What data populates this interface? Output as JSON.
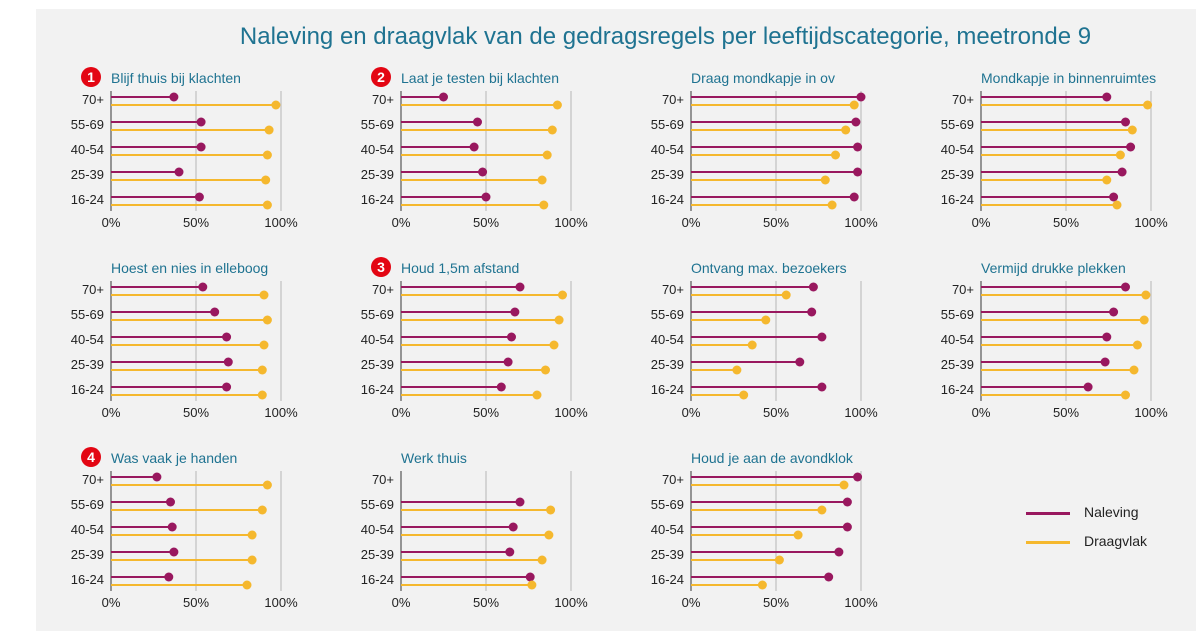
{
  "chart_data": {
    "type": "lollipop",
    "title": "Naleving en draagvlak van de gedragsregels per leeftijdscategorie, meetronde 9",
    "categories": [
      "70+",
      "55-69",
      "40-54",
      "25-39",
      "16-24"
    ],
    "xticks": [
      "0%",
      "50%",
      "100%"
    ],
    "xlim": [
      0,
      100
    ],
    "colors": {
      "naleving": "#99185f",
      "draagvlak": "#f5b82e",
      "title": "#1f7391",
      "badge": "#e30613"
    },
    "legend": [
      {
        "key": "naleving",
        "label": "Naleving"
      },
      {
        "key": "draagvlak",
        "label": "Draagvlak"
      }
    ],
    "panels": [
      {
        "title": "Blijf thuis bij klachten",
        "badge": "1",
        "naleving": [
          37,
          53,
          53,
          40,
          52
        ],
        "draagvlak": [
          97,
          93,
          92,
          91,
          92
        ]
      },
      {
        "title": "Laat je testen bij klachten",
        "badge": "2",
        "naleving": [
          25,
          45,
          43,
          48,
          50
        ],
        "draagvlak": [
          92,
          89,
          86,
          83,
          84
        ]
      },
      {
        "title": "Draag mondkapje in ov",
        "badge": "",
        "naleving": [
          100,
          97,
          98,
          98,
          96
        ],
        "draagvlak": [
          96,
          91,
          85,
          79,
          83
        ]
      },
      {
        "title": "Mondkapje in binnenruimtes",
        "badge": "",
        "naleving": [
          74,
          85,
          88,
          83,
          78
        ],
        "draagvlak": [
          98,
          89,
          82,
          74,
          80
        ]
      },
      {
        "title": "Hoest en nies in elleboog",
        "badge": "",
        "naleving": [
          54,
          61,
          68,
          69,
          68
        ],
        "draagvlak": [
          90,
          92,
          90,
          89,
          89
        ]
      },
      {
        "title": "Houd 1,5m afstand",
        "badge": "3",
        "naleving": [
          70,
          67,
          65,
          63,
          59
        ],
        "draagvlak": [
          95,
          93,
          90,
          85,
          80
        ]
      },
      {
        "title": "Ontvang max. bezoekers",
        "badge": "",
        "naleving": [
          72,
          71,
          77,
          64,
          77
        ],
        "draagvlak": [
          56,
          44,
          36,
          27,
          31
        ]
      },
      {
        "title": "Vermijd drukke plekken",
        "badge": "",
        "naleving": [
          85,
          78,
          74,
          73,
          63
        ],
        "draagvlak": [
          97,
          96,
          92,
          90,
          85
        ]
      },
      {
        "title": "Was vaak je handen",
        "badge": "4",
        "naleving": [
          27,
          35,
          36,
          37,
          34
        ],
        "draagvlak": [
          92,
          89,
          83,
          83,
          80
        ]
      },
      {
        "title": "Werk thuis",
        "badge": "",
        "naleving": [
          null,
          70,
          66,
          64,
          76
        ],
        "draagvlak": [
          null,
          88,
          87,
          83,
          77
        ]
      },
      {
        "title": "Houd je aan de avondklok",
        "badge": "",
        "naleving": [
          98,
          92,
          92,
          87,
          81
        ],
        "draagvlak": [
          90,
          77,
          63,
          52,
          42
        ]
      }
    ]
  }
}
